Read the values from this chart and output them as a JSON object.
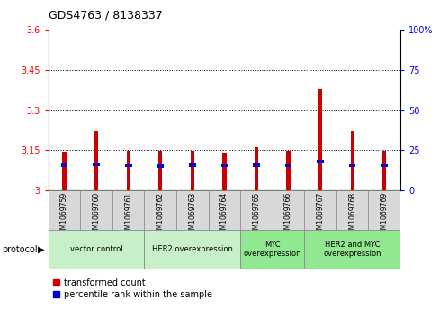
{
  "title": "GDS4763 / 8138337",
  "samples": [
    "GSM1069759",
    "GSM1069760",
    "GSM1069761",
    "GSM1069762",
    "GSM1069763",
    "GSM1069764",
    "GSM1069765",
    "GSM1069766",
    "GSM1069767",
    "GSM1069768",
    "GSM1069769"
  ],
  "red_tops": [
    3.145,
    3.22,
    3.148,
    3.148,
    3.148,
    3.142,
    3.16,
    3.148,
    3.38,
    3.22,
    3.148
  ],
  "blue_centers": [
    3.095,
    3.098,
    3.093,
    3.092,
    3.094,
    3.093,
    3.095,
    3.093,
    3.108,
    3.093,
    3.093
  ],
  "ylim_left": [
    3.0,
    3.6
  ],
  "ylim_right": [
    0,
    100
  ],
  "yticks_left": [
    3.0,
    3.15,
    3.3,
    3.45,
    3.6
  ],
  "yticks_right": [
    0,
    25,
    50,
    75,
    100
  ],
  "ytick_labels_left": [
    "3",
    "3.15",
    "3.3",
    "3.45",
    "3.6"
  ],
  "ytick_labels_right": [
    "0",
    "25",
    "50",
    "75",
    "100%"
  ],
  "gridlines": [
    3.15,
    3.3,
    3.45
  ],
  "protocol_groups": [
    {
      "label": "vector control",
      "start": 0,
      "end": 3,
      "color": "#c8f0c8"
    },
    {
      "label": "HER2 overexpression",
      "start": 3,
      "end": 6,
      "color": "#c8f0c8"
    },
    {
      "label": "MYC\noverexpression",
      "start": 6,
      "end": 8,
      "color": "#90e890"
    },
    {
      "label": "HER2 and MYC\noverexpression",
      "start": 8,
      "end": 11,
      "color": "#90e890"
    }
  ],
  "legend_red": "transformed count",
  "legend_blue": "percentile rank within the sample",
  "bar_width": 0.12,
  "blue_bar_height": 0.012,
  "background_color": "#ffffff",
  "bar_color_red": "#cc0000",
  "bar_color_blue": "#0000cc",
  "bar_base": 3.0,
  "group_separators": [
    2.5,
    5.5,
    7.5
  ]
}
